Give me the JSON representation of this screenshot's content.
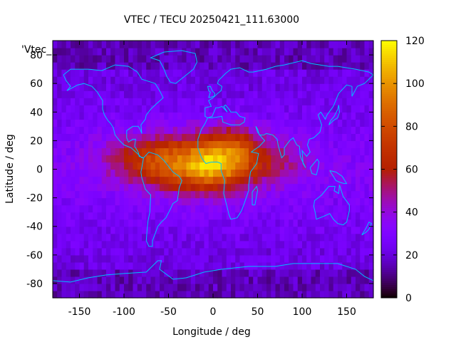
{
  "chart_data": {
    "type": "heatmap",
    "title": "VTEC / TECU 20250421_111.63000",
    "key_label": "'Vtec_",
    "xlabel": "Longitude / deg",
    "ylabel": "Latitude / deg",
    "xlim": [
      -180,
      180
    ],
    "ylim": [
      -90,
      90
    ],
    "x_ticks": [
      -150,
      -100,
      -50,
      0,
      50,
      100,
      150
    ],
    "y_ticks": [
      -80,
      -60,
      -40,
      -20,
      0,
      20,
      40,
      60,
      80
    ],
    "colorbar": {
      "min": 0,
      "max": 120,
      "ticks": [
        0,
        20,
        40,
        60,
        80,
        100,
        120
      ]
    },
    "grid_resolution_deg": 5,
    "peaks": [
      {
        "lon": -50,
        "lat": 5,
        "tecu": 82
      },
      {
        "lon": 20,
        "lat": 15,
        "tecu": 95
      },
      {
        "lon": 0,
        "lat": 0,
        "tecu": 98
      },
      {
        "lon": -95,
        "lat": 10,
        "tecu": 72
      },
      {
        "lon": 70,
        "lat": 5,
        "tecu": 72
      }
    ],
    "background_tecu": 22,
    "colors": {
      "coastline": "#00bfff",
      "axes": "#000000"
    }
  }
}
